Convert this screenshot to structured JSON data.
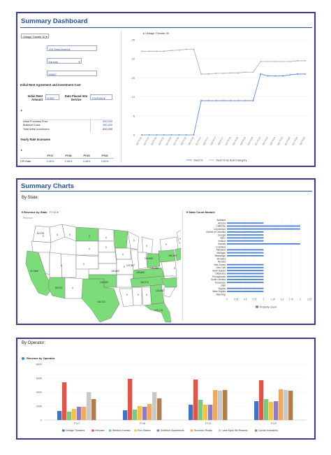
{
  "dashboard": {
    "title": "Summary Dashboard",
    "selector": "Vintage Theater 30",
    "address_label": "Address",
    "address_value": "125 Smig Avenue",
    "state_label": "State",
    "state_value": "Kansas",
    "zip_label": "Zip Code",
    "zip_value": "60062",
    "section_title": "Initial Rent Agreement and Investment Cost",
    "rent_label": "Initial Rent Amount",
    "rent_value": "6,000",
    "date_label": "Date Placed Into Service",
    "date_value": "7/1/2016",
    "costs": [
      {
        "label": "Initial Purchase Price",
        "value": "500,000"
      },
      {
        "label": "Buildout Costs",
        "value": "300,000"
      },
      {
        "label": "Total Initial Investment",
        "value": "800,000"
      }
    ],
    "yearly_title": "Yearly Rate Increases",
    "years": [
      "FY17",
      "FY18",
      "FY19",
      "FY20"
    ],
    "cpi_label": "CPI Rate",
    "cpi_values": [
      "2.00%",
      "2.56%",
      "3.08%",
      "3.60%"
    ]
  },
  "yield_chart": {
    "title": "Vintage Theater 30",
    "legend": [
      "Yield %",
      "Yield % by Sub-Category"
    ],
    "colors": [
      "#4a7fd4",
      "#a8a8a8"
    ]
  },
  "charts": {
    "title": "Summary Charts",
    "by_state": "By State:",
    "map_title": "Revenue by State",
    "map_selector": "FY16",
    "map_sub": "Revenue",
    "state_count_title": "State Count Module",
    "state_count_legend": "Property Count",
    "map_values": [
      {
        "label": "52,578"
      },
      {
        "label": "417,884"
      },
      {
        "label": "96,720"
      },
      {
        "label": "144,724"
      },
      {
        "label": "134,063"
      },
      {
        "label": "150,802"
      },
      {
        "label": "137,887"
      },
      {
        "label": "108,860"
      },
      {
        "label": "126,855"
      },
      {
        "label": "116,970"
      },
      {
        "label": "131,863"
      },
      {
        "label": "173,178"
      },
      {
        "label": "105,965"
      },
      {
        "label": "104,360"
      }
    ]
  },
  "operator": {
    "title": "By Operator:",
    "chart_title": "Revenue by Operator"
  },
  "chart_data": [
    {
      "type": "line",
      "title": "Vintage Theater 30",
      "x": [
        "Q1 FY15",
        "Q2 FY15",
        "Q3 FY15",
        "Q4 FY15",
        "Q1 FY16",
        "Q2 FY16",
        "Q3 FY16",
        "Q4 FY16",
        "Q1 FY17",
        "Q2 FY17",
        "Q3 FY17",
        "Q4 FY17",
        "Q1 FY18",
        "Q2 FY18",
        "Q3 FY18",
        "Q4 FY18",
        "Q1 FY19",
        "Q2 FY19",
        "Q3 FY19",
        "Q4 FY19",
        "Q1 FY20",
        "Q2 FY20",
        "Q3 FY20"
      ],
      "series": [
        {
          "name": "Yield %",
          "values": [
            0,
            0,
            0,
            0,
            0,
            0,
            0,
            0,
            9,
            9,
            9,
            9,
            9,
            9,
            9,
            9,
            16,
            15.5,
            15.5,
            15.5,
            15.8,
            16,
            16
          ]
        },
        {
          "name": "Yield % by Sub-Category",
          "values": [
            22,
            22,
            22,
            22,
            22.2,
            22.3,
            22.5,
            22.5,
            16,
            16,
            16.2,
            16.2,
            16.3,
            16.3,
            16.5,
            16.5,
            19.3,
            19.3,
            19.3,
            19.3,
            19.3,
            19.5,
            19.5
          ]
        }
      ],
      "ylim": [
        0,
        25
      ],
      "yticks": [
        0,
        5,
        10,
        15,
        20,
        25
      ],
      "legend": "bottom"
    },
    {
      "type": "bar",
      "title": "State Count Module",
      "orientation": "horizontal",
      "categories": [
        "Alabama",
        "Arizona",
        "California",
        "Connecticut",
        "District of Columbia",
        "Georgia",
        "Idaho",
        "Indiana",
        "Kansas",
        "Louisiana",
        "Maryland",
        "Michigan",
        "Mississippi",
        "Montana",
        "Nevada",
        "New Jersey",
        "New York",
        "North Dakota",
        "Oklahoma",
        "Pennsylvania",
        "South Carolina",
        "Tennessee",
        "Utah",
        "Virginia",
        "West Virginia",
        "Wyoming"
      ],
      "series": [
        {
          "name": "Property Count",
          "values": [
            0,
            1,
            2,
            2,
            1,
            1,
            1,
            1,
            2,
            0,
            1,
            1,
            1,
            0,
            0,
            1,
            1,
            1,
            1,
            1,
            1,
            1,
            0,
            1,
            1,
            0
          ]
        }
      ],
      "xlim": [
        0,
        2.25
      ],
      "xticks": [
        "0",
        "0.25",
        "0.5",
        "0.75",
        "1",
        "1.25",
        "1.5",
        "1.75",
        "2",
        "2.25"
      ],
      "legend": "bottom"
    },
    {
      "type": "bar",
      "title": "Revenue by Operator",
      "categories": [
        "FY17",
        "FY18",
        "FY19",
        "FY20"
      ],
      "series": [
        {
          "name": "Vintage Theatres",
          "values": [
            130,
            140,
            220,
            270
          ]
        },
        {
          "name": "Hercase",
          "values": [
            540,
            590,
            580,
            570
          ]
        },
        {
          "name": "Windsor Homes",
          "values": [
            120,
            150,
            290,
            300
          ]
        },
        {
          "name": "Fun Station",
          "values": [
            160,
            200,
            220,
            260
          ]
        },
        {
          "name": "Goldburn Apartments",
          "values": [
            190,
            190,
            220,
            270
          ]
        },
        {
          "name": "Rucchino Realty",
          "values": [
            190,
            230,
            430,
            440
          ]
        },
        {
          "name": "Lane Myer Ski Resorts",
          "values": [
            400,
            400,
            420,
            430
          ]
        },
        {
          "name": "Caruso Industries",
          "values": [
            300,
            310,
            430,
            420
          ]
        }
      ],
      "colors": [
        "#4472c4",
        "#e25449",
        "#7fc97f",
        "#f6c244",
        "#8e7cc3",
        "#f3a85e",
        "#c9c9c9",
        "#b07d4b"
      ],
      "ylim": [
        0,
        800
      ],
      "yticks": [
        "0",
        "200K",
        "400K",
        "600K",
        "800K"
      ],
      "legend": "bottom"
    }
  ]
}
